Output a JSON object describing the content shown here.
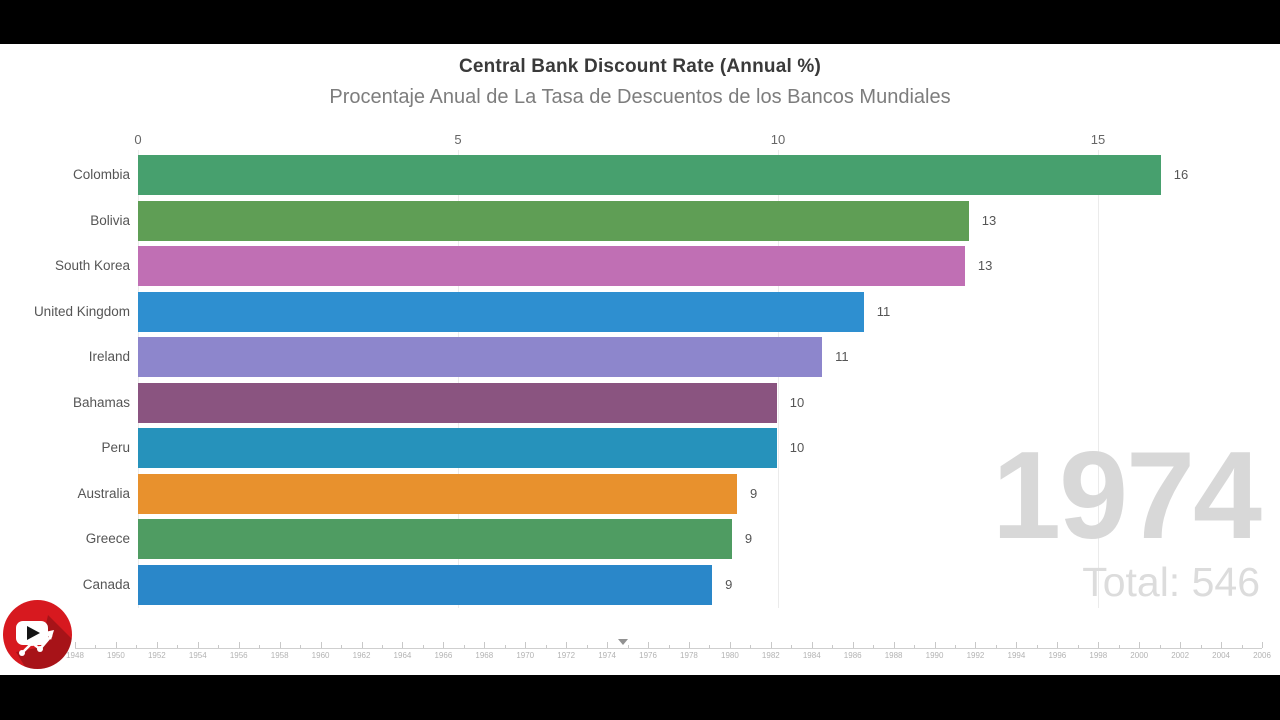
{
  "overlay": {
    "year_label": "1974",
    "total_label": "Total: 546"
  },
  "logo": {
    "icon": "youtube-play-chart-logo",
    "color": "#d7191f"
  },
  "colors": {
    "background": "#ffffff",
    "letterbox": "#000000",
    "big_year_text": "#d8d8d8",
    "grid": "#ebebeb"
  },
  "chart_data": {
    "type": "bar",
    "orientation": "horizontal",
    "title": "Central Bank Discount Rate (Annual %)",
    "subtitle": "Procentaje Anual de La Tasa de Descuentos de los Bancos Mundiales",
    "year": 1974,
    "total": 546,
    "xlabel": "",
    "ylabel": "",
    "x_axis": {
      "ticks": [
        0,
        5,
        10,
        15
      ],
      "range": [
        0,
        17.6
      ],
      "position": "top",
      "grid": true
    },
    "bars": [
      {
        "country": "Colombia",
        "value": 16,
        "bar_units": 15.98,
        "color": "#47a06e"
      },
      {
        "country": "Bolivia",
        "value": 13,
        "bar_units": 12.98,
        "color": "#5f9e55"
      },
      {
        "country": "South Korea",
        "value": 13,
        "bar_units": 12.92,
        "color": "#c06fb4"
      },
      {
        "country": "United Kingdom",
        "value": 11,
        "bar_units": 11.34,
        "color": "#2e8fd0"
      },
      {
        "country": "Ireland",
        "value": 11,
        "bar_units": 10.69,
        "color": "#8d86cc"
      },
      {
        "country": "Bahamas",
        "value": 10,
        "bar_units": 9.98,
        "color": "#8a5480"
      },
      {
        "country": "Peru",
        "value": 10,
        "bar_units": 9.98,
        "color": "#2692bb"
      },
      {
        "country": "Australia",
        "value": 9,
        "bar_units": 9.36,
        "color": "#e8912d"
      },
      {
        "country": "Greece",
        "value": 9,
        "bar_units": 9.28,
        "color": "#4f9c62"
      },
      {
        "country": "Canada",
        "value": 9,
        "bar_units": 8.97,
        "color": "#2a87c9"
      }
    ],
    "timeline": {
      "start_year": 1948,
      "end_year": 2006,
      "label_step": 2,
      "marker_year": 1974.8,
      "labels": [
        "1948",
        "1950",
        "1952",
        "1954",
        "1956",
        "1958",
        "1960",
        "1962",
        "1964",
        "1966",
        "1968",
        "1970",
        "1972",
        "1974",
        "1976",
        "1978",
        "1980",
        "1982",
        "1984",
        "1986",
        "1988",
        "1990",
        "1992",
        "1994",
        "1996",
        "1998",
        "2000",
        "2002",
        "2004",
        "2006"
      ]
    }
  }
}
